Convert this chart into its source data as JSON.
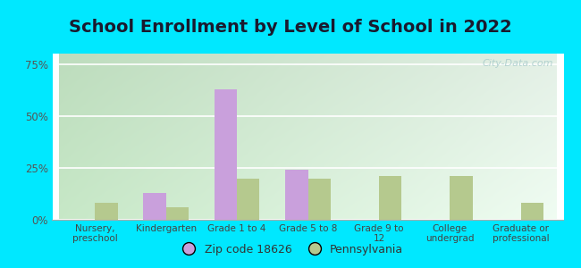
{
  "title": "School Enrollment by Level of School in 2022",
  "categories": [
    "Nursery,\npreschool",
    "Kindergarten",
    "Grade 1 to 4",
    "Grade 5 to 8",
    "Grade 9 to\n12",
    "College\nundergrad",
    "Graduate or\nprofessional"
  ],
  "zip_values": [
    0,
    13,
    63,
    24,
    0,
    0,
    0
  ],
  "pa_values": [
    8,
    6,
    20,
    20,
    21,
    21,
    8
  ],
  "zip_color": "#c9a0dc",
  "pa_color": "#b5c98e",
  "ylim": [
    0,
    80
  ],
  "yticks": [
    0,
    25,
    50,
    75
  ],
  "ytick_labels": [
    "0%",
    "25%",
    "50%",
    "75%"
  ],
  "legend_zip": "Zip code 18626",
  "legend_pa": "Pennsylvania",
  "background_outer": "#00e8ff",
  "bg_gradient_left": "#c8e8c0",
  "bg_gradient_right": "#e8f8f0",
  "watermark": "City-Data.com",
  "title_fontsize": 14,
  "bar_width": 0.32
}
